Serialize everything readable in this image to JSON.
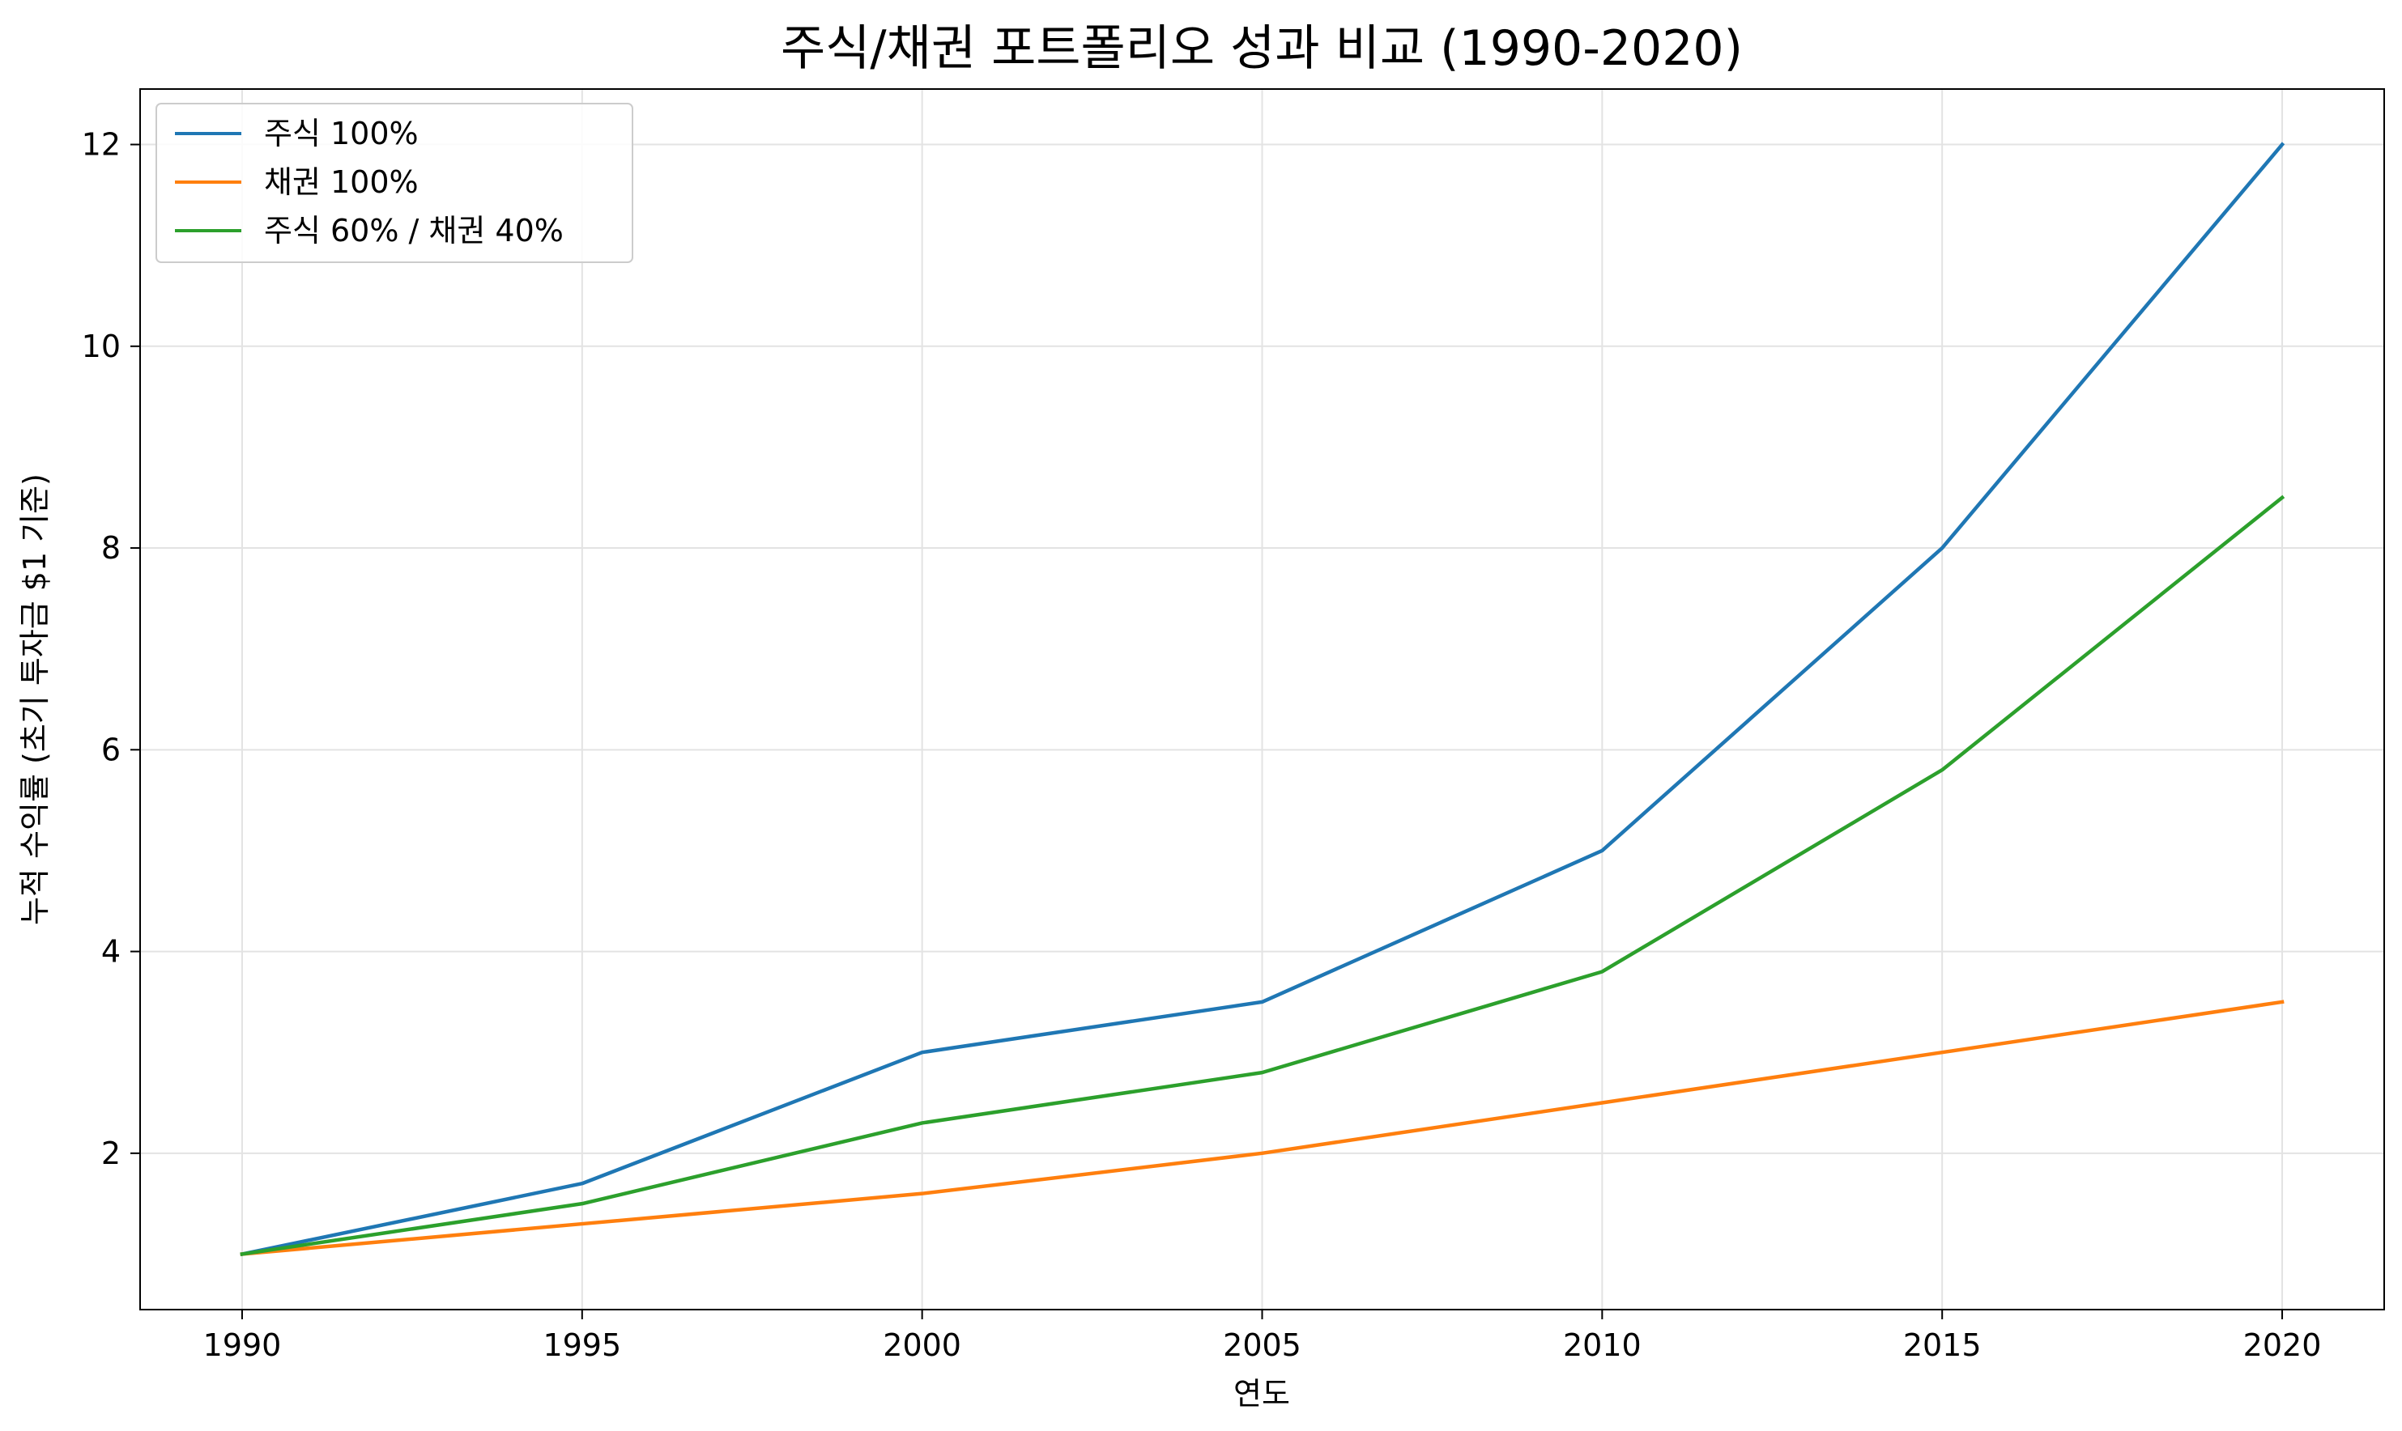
{
  "chart_data": {
    "type": "line",
    "title": "주식/채권 포트폴리오 성과 비교 (1990-2020)",
    "xlabel": "연도",
    "ylabel": "누적 수익률 (초기 투자금 $1 기준)",
    "x": [
      1990,
      1995,
      2000,
      2005,
      2010,
      2015,
      2020
    ],
    "xticks": [
      "1990",
      "1995",
      "2000",
      "2005",
      "2010",
      "2015",
      "2020"
    ],
    "yticks": [
      "2",
      "4",
      "6",
      "8",
      "10",
      "12"
    ],
    "xlim": [
      1988.5,
      2021.5
    ],
    "ylim": [
      0.45,
      12.55
    ],
    "grid": true,
    "legend_position": "top-left",
    "series": [
      {
        "name": "주식 100%",
        "color": "#1f77b4",
        "values": [
          1.0,
          1.7,
          3.0,
          3.5,
          5.0,
          8.0,
          12.0
        ]
      },
      {
        "name": "채권 100%",
        "color": "#ff7f0e",
        "values": [
          1.0,
          1.3,
          1.6,
          2.0,
          2.5,
          3.0,
          3.5
        ]
      },
      {
        "name": "주식 60% / 채권 40%",
        "color": "#2ca02c",
        "values": [
          1.0,
          1.5,
          2.3,
          2.8,
          3.8,
          5.8,
          8.5
        ]
      }
    ]
  }
}
